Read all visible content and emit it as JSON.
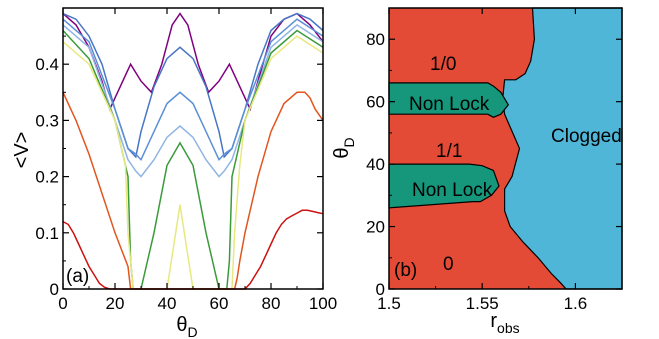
{
  "chart_data": [
    {
      "type": "line",
      "panel": "(a)",
      "xlabel": "θD",
      "ylabel": "<V>",
      "xlim": [
        0,
        100
      ],
      "ylim": [
        0,
        0.5
      ],
      "xticks": [
        "0",
        "20",
        "40",
        "60",
        "80",
        "100"
      ],
      "yticks": [
        "0",
        "0.1",
        "0.2",
        "0.3",
        "0.4"
      ],
      "series": [
        {
          "color": "#800080",
          "x": [
            0,
            5,
            10,
            15,
            18,
            22,
            26,
            30,
            34,
            38,
            42,
            45,
            48,
            52,
            56,
            60,
            64,
            68,
            72,
            75,
            80,
            85,
            90,
            95,
            100
          ],
          "values": [
            0.49,
            0.47,
            0.43,
            0.37,
            0.32,
            0.36,
            0.4,
            0.37,
            0.35,
            0.4,
            0.47,
            0.49,
            0.47,
            0.4,
            0.35,
            0.37,
            0.4,
            0.36,
            0.32,
            0.37,
            0.45,
            0.48,
            0.49,
            0.47,
            0.44
          ]
        },
        {
          "color": "#4876c4",
          "x": [
            0,
            5,
            10,
            15,
            20,
            25,
            28,
            30,
            35,
            40,
            45,
            50,
            55,
            60,
            62,
            65,
            70,
            75,
            80,
            85,
            90,
            95,
            100
          ],
          "values": [
            0.49,
            0.48,
            0.45,
            0.4,
            0.32,
            0.25,
            0.235,
            0.28,
            0.36,
            0.41,
            0.43,
            0.41,
            0.36,
            0.28,
            0.235,
            0.25,
            0.32,
            0.4,
            0.46,
            0.48,
            0.49,
            0.48,
            0.46
          ]
        },
        {
          "color": "#5b8fd6",
          "x": [
            0,
            10,
            20,
            25,
            28,
            30,
            35,
            40,
            45,
            50,
            55,
            60,
            62,
            65,
            70,
            80,
            90,
            100
          ],
          "values": [
            0.48,
            0.44,
            0.32,
            0.25,
            0.24,
            0.23,
            0.28,
            0.33,
            0.35,
            0.33,
            0.28,
            0.23,
            0.24,
            0.25,
            0.32,
            0.44,
            0.48,
            0.45
          ]
        },
        {
          "color": "#8fb4e3",
          "x": [
            0,
            10,
            20,
            25,
            28,
            30,
            35,
            40,
            45,
            50,
            55,
            60,
            62,
            65,
            70,
            80,
            90,
            100
          ],
          "values": [
            0.47,
            0.43,
            0.3,
            0.23,
            0.21,
            0.2,
            0.23,
            0.27,
            0.29,
            0.27,
            0.23,
            0.2,
            0.21,
            0.23,
            0.3,
            0.43,
            0.47,
            0.44
          ]
        },
        {
          "color": "#3a9a3a",
          "x": [
            0,
            10,
            20,
            25,
            26,
            27,
            30,
            35,
            40,
            45,
            50,
            55,
            60,
            63,
            64,
            65,
            70,
            80,
            90,
            100
          ],
          "values": [
            0.46,
            0.41,
            0.3,
            0.2,
            0.05,
            0.0,
            0.0,
            0.1,
            0.22,
            0.26,
            0.22,
            0.1,
            0.0,
            0.0,
            0.05,
            0.2,
            0.3,
            0.42,
            0.46,
            0.43
          ]
        },
        {
          "color": "#e8e880",
          "x": [
            0,
            10,
            20,
            24,
            25,
            27,
            30,
            40,
            44,
            45,
            46,
            50,
            60,
            63,
            65,
            66,
            68,
            70,
            80,
            90,
            100
          ],
          "values": [
            0.44,
            0.4,
            0.3,
            0.22,
            0.1,
            0.0,
            0.0,
            0.0,
            0.12,
            0.15,
            0.12,
            0.0,
            0.0,
            0.0,
            0.0,
            0.1,
            0.22,
            0.3,
            0.41,
            0.45,
            0.42
          ]
        },
        {
          "color": "#e2551e",
          "x": [
            0,
            5,
            10,
            15,
            20,
            25,
            26,
            27,
            30,
            60,
            64,
            66,
            67,
            68,
            70,
            75,
            80,
            85,
            90,
            93,
            95,
            97,
            100
          ],
          "values": [
            0.35,
            0.3,
            0.24,
            0.17,
            0.1,
            0.04,
            0.0,
            0.0,
            0.0,
            0.0,
            0.0,
            0.0,
            0.02,
            0.05,
            0.1,
            0.2,
            0.28,
            0.33,
            0.35,
            0.35,
            0.34,
            0.32,
            0.3
          ]
        },
        {
          "color": "#cc1111",
          "x": [
            0,
            2,
            4,
            6,
            8,
            10,
            12,
            14,
            16,
            18,
            70,
            72,
            74,
            76,
            78,
            80,
            82,
            84,
            86,
            88,
            90,
            92,
            94,
            96,
            98,
            100
          ],
          "values": [
            0.12,
            0.115,
            0.1,
            0.08,
            0.06,
            0.04,
            0.025,
            0.01,
            0.003,
            0.0,
            0.0,
            0.01,
            0.025,
            0.04,
            0.06,
            0.08,
            0.1,
            0.115,
            0.125,
            0.13,
            0.135,
            0.14,
            0.14,
            0.138,
            0.136,
            0.134
          ]
        }
      ]
    },
    {
      "type": "area",
      "panel": "(b)",
      "xlabel": "robs",
      "ylabel": "θD",
      "xlim": [
        1.5,
        1.625
      ],
      "ylim": [
        0,
        90
      ],
      "xticks": [
        "1.5",
        "1.55",
        "1.6"
      ],
      "yticks": [
        "0",
        "20",
        "40",
        "60",
        "80"
      ],
      "regions": [
        {
          "label": "1/0",
          "color": "#e34b36"
        },
        {
          "label": "Non Lock",
          "color": "#16967a"
        },
        {
          "label": "1/1",
          "color": "#e34b36"
        },
        {
          "label": "Non Lock",
          "color": "#16967a"
        },
        {
          "label": "0",
          "color": "#e34b36"
        },
        {
          "label": "Clogged",
          "color": "#4fb6d8"
        }
      ],
      "boundaries": {
        "clogged_edge": {
          "x": [
            1.577,
            1.578,
            1.576,
            1.573,
            1.568,
            1.562,
            1.561,
            1.562,
            1.57,
            1.566,
            1.562,
            1.562,
            1.565,
            1.572,
            1.58,
            1.587,
            1.592,
            1.595
          ],
          "y": [
            90,
            80,
            73,
            69,
            67,
            67,
            61,
            56,
            45,
            36,
            32,
            25,
            20,
            15,
            10,
            5,
            2,
            0
          ]
        },
        "upper_nonlock": {
          "x": [
            1.5,
            1.553,
            1.556,
            1.56,
            1.564,
            1.56,
            1.556,
            1.553,
            1.5
          ],
          "y": [
            66,
            66,
            65,
            63,
            59,
            56,
            55,
            56,
            56
          ]
        },
        "lower_nonlock": {
          "x": [
            1.5,
            1.543,
            1.55,
            1.556,
            1.559,
            1.555,
            1.549,
            1.545,
            1.5
          ],
          "y": [
            40,
            40,
            39.5,
            38,
            33,
            30,
            28,
            28,
            26
          ]
        }
      },
      "annotations": [
        "1/0",
        "Non Lock",
        "1/1",
        "Non Lock",
        "Clogged",
        "0",
        "(b)"
      ]
    }
  ],
  "panel_a": {
    "letter": "(a)",
    "ylabel": "<V>",
    "xlabel_main": "θ",
    "xlabel_sub": "D",
    "yticks": [
      "0",
      "0.1",
      "0.2",
      "0.3",
      "0.4"
    ],
    "xticks": [
      "0",
      "20",
      "40",
      "60",
      "80",
      "100"
    ]
  },
  "panel_b": {
    "letter": "(b)",
    "ylabel_main": "θ",
    "ylabel_sub": "D",
    "xlabel_main": "r",
    "xlabel_sub": "obs",
    "yticks": [
      "0",
      "20",
      "40",
      "60",
      "80"
    ],
    "xticks": [
      "1.5",
      "1.55",
      "1.6"
    ],
    "labels": {
      "top": "1/0",
      "nonlock_upper": "Non Lock",
      "middle": "1/1",
      "nonlock_lower": "Non Lock",
      "clogged": "Clogged",
      "bottom": "0"
    }
  }
}
